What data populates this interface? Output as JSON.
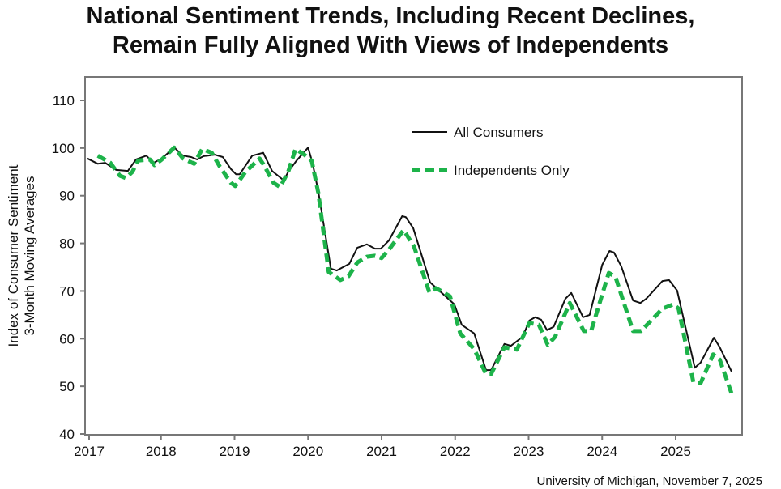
{
  "chart_data": {
    "type": "line",
    "title_line1": "National Sentiment Trends, Including Recent Declines,",
    "title_line2": "Remain Fully Aligned With Views of Independents",
    "ylabel_line1": "Index of Consumer Sentiment",
    "ylabel_line2": "3-Month Moving Averages",
    "xlabel": "",
    "source": "University of Michigan, November 7, 2025",
    "ylim": [
      40,
      110
    ],
    "xlim": [
      2017,
      2026
    ],
    "yticks": [
      40,
      50,
      60,
      70,
      80,
      90,
      100,
      110
    ],
    "xticks": [
      2017,
      2018,
      2019,
      2020,
      2021,
      2022,
      2023,
      2024,
      2025
    ],
    "legend_position": "top-right",
    "series": [
      {
        "name": "All Consumers",
        "color": "#111111",
        "style": "solid",
        "points": [
          [
            2017.0,
            97.8
          ],
          [
            2017.14,
            96.7
          ],
          [
            2017.24,
            96.9
          ],
          [
            2017.39,
            95.4
          ],
          [
            2017.55,
            95.2
          ],
          [
            2017.66,
            97.6
          ],
          [
            2017.8,
            98.4
          ],
          [
            2017.9,
            96.9
          ],
          [
            2018.01,
            97.8
          ],
          [
            2018.18,
            100.1
          ],
          [
            2018.3,
            98.4
          ],
          [
            2018.41,
            98.1
          ],
          [
            2018.49,
            97.6
          ],
          [
            2018.58,
            98.3
          ],
          [
            2018.73,
            98.6
          ],
          [
            2018.84,
            98.1
          ],
          [
            2018.95,
            95.6
          ],
          [
            2019.02,
            94.5
          ],
          [
            2019.07,
            94.5
          ],
          [
            2019.24,
            98.4
          ],
          [
            2019.39,
            99.0
          ],
          [
            2019.51,
            95.2
          ],
          [
            2019.67,
            93.2
          ],
          [
            2019.73,
            95.0
          ],
          [
            2019.84,
            97.3
          ],
          [
            2020.0,
            100.1
          ],
          [
            2020.06,
            96.9
          ],
          [
            2020.14,
            90.8
          ],
          [
            2020.31,
            74.7
          ],
          [
            2020.39,
            74.3
          ],
          [
            2020.56,
            75.7
          ],
          [
            2020.67,
            79.1
          ],
          [
            2020.8,
            79.8
          ],
          [
            2020.91,
            78.9
          ],
          [
            2020.99,
            78.9
          ],
          [
            2021.1,
            80.6
          ],
          [
            2021.28,
            85.7
          ],
          [
            2021.33,
            85.5
          ],
          [
            2021.43,
            83.2
          ],
          [
            2021.66,
            71.8
          ],
          [
            2021.99,
            67.2
          ],
          [
            2022.09,
            62.9
          ],
          [
            2022.26,
            61.1
          ],
          [
            2022.42,
            53.4
          ],
          [
            2022.49,
            53.4
          ],
          [
            2022.67,
            58.9
          ],
          [
            2022.76,
            58.5
          ],
          [
            2022.92,
            60.4
          ],
          [
            2023.01,
            63.8
          ],
          [
            2023.09,
            64.5
          ],
          [
            2023.17,
            64.0
          ],
          [
            2023.25,
            61.8
          ],
          [
            2023.34,
            62.5
          ],
          [
            2023.5,
            68.4
          ],
          [
            2023.58,
            69.6
          ],
          [
            2023.74,
            64.5
          ],
          [
            2023.83,
            65.0
          ],
          [
            2024.0,
            75.5
          ],
          [
            2024.1,
            78.4
          ],
          [
            2024.16,
            78.1
          ],
          [
            2024.26,
            75.2
          ],
          [
            2024.42,
            68.0
          ],
          [
            2024.52,
            67.5
          ],
          [
            2024.6,
            68.4
          ],
          [
            2024.82,
            72.1
          ],
          [
            2024.91,
            72.3
          ],
          [
            2025.02,
            70.1
          ],
          [
            2025.26,
            53.9
          ],
          [
            2025.34,
            55.0
          ],
          [
            2025.52,
            60.2
          ],
          [
            2025.6,
            58.2
          ],
          [
            2025.76,
            53.1
          ]
        ]
      },
      {
        "name": "Independents Only",
        "color": "#1db34a",
        "style": "dashed",
        "points": [
          [
            2017.14,
            98.4
          ],
          [
            2017.31,
            96.9
          ],
          [
            2017.44,
            94.2
          ],
          [
            2017.52,
            93.7
          ],
          [
            2017.61,
            95.0
          ],
          [
            2017.69,
            97.4
          ],
          [
            2017.85,
            97.6
          ],
          [
            2017.91,
            96.4
          ],
          [
            2018.01,
            97.6
          ],
          [
            2018.18,
            100.1
          ],
          [
            2018.3,
            97.8
          ],
          [
            2018.45,
            96.7
          ],
          [
            2018.56,
            99.8
          ],
          [
            2018.69,
            99.0
          ],
          [
            2018.8,
            96.1
          ],
          [
            2018.95,
            92.7
          ],
          [
            2019.01,
            92.0
          ],
          [
            2019.15,
            95.0
          ],
          [
            2019.34,
            97.8
          ],
          [
            2019.4,
            96.4
          ],
          [
            2019.53,
            92.7
          ],
          [
            2019.62,
            91.8
          ],
          [
            2019.73,
            95.0
          ],
          [
            2019.83,
            99.8
          ],
          [
            2019.95,
            98.6
          ],
          [
            2020.05,
            97.3
          ],
          [
            2020.14,
            90.5
          ],
          [
            2020.28,
            74.0
          ],
          [
            2020.44,
            72.3
          ],
          [
            2020.55,
            73.1
          ],
          [
            2020.67,
            76.0
          ],
          [
            2020.8,
            77.2
          ],
          [
            2020.91,
            77.4
          ],
          [
            2021.0,
            76.9
          ],
          [
            2021.11,
            78.9
          ],
          [
            2021.3,
            82.8
          ],
          [
            2021.44,
            79.4
          ],
          [
            2021.65,
            69.7
          ],
          [
            2021.74,
            70.6
          ],
          [
            2021.93,
            68.9
          ],
          [
            2022.07,
            61.1
          ],
          [
            2022.26,
            57.8
          ],
          [
            2022.42,
            52.6
          ],
          [
            2022.49,
            52.6
          ],
          [
            2022.67,
            58.2
          ],
          [
            2022.84,
            57.7
          ],
          [
            2023.01,
            63.3
          ],
          [
            2023.14,
            62.9
          ],
          [
            2023.26,
            58.7
          ],
          [
            2023.36,
            60.4
          ],
          [
            2023.56,
            67.5
          ],
          [
            2023.75,
            61.6
          ],
          [
            2023.85,
            61.6
          ],
          [
            2024.09,
            73.8
          ],
          [
            2024.18,
            73.0
          ],
          [
            2024.42,
            61.6
          ],
          [
            2024.53,
            61.6
          ],
          [
            2024.82,
            66.3
          ],
          [
            2024.97,
            67.2
          ],
          [
            2025.04,
            66.3
          ],
          [
            2025.24,
            50.9
          ],
          [
            2025.34,
            50.7
          ],
          [
            2025.51,
            56.7
          ],
          [
            2025.6,
            55.6
          ],
          [
            2025.76,
            48.5
          ]
        ]
      }
    ]
  }
}
